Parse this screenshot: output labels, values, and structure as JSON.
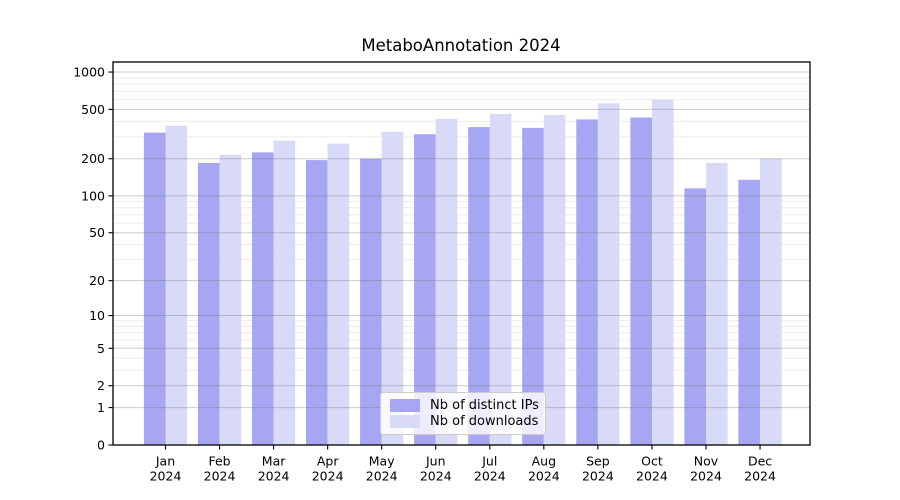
{
  "title": "MetaboAnnotation 2024",
  "chart_data": {
    "type": "bar",
    "title": "MetaboAnnotation 2024",
    "categories": [
      "Jan",
      "Feb",
      "Mar",
      "Apr",
      "May",
      "Jun",
      "Jul",
      "Aug",
      "Sep",
      "Oct",
      "Nov",
      "Dec"
    ],
    "category_year": "2024",
    "y_scale": "log1p",
    "y_ticks": [
      0,
      1,
      2,
      5,
      10,
      20,
      50,
      100,
      200,
      500,
      1000
    ],
    "ylim": [
      0,
      1200
    ],
    "grid": true,
    "legend_position": "lower center",
    "series": [
      {
        "name": "Nb of distinct IPs",
        "color": "#a6a6f2",
        "values": [
          325,
          185,
          225,
          195,
          200,
          315,
          360,
          355,
          415,
          430,
          115,
          135
        ]
      },
      {
        "name": "Nb of downloads",
        "color": "#d9d9f8",
        "values": [
          370,
          215,
          280,
          265,
          330,
          420,
          460,
          450,
          560,
          600,
          185,
          200
        ]
      }
    ]
  },
  "colors": {
    "axis": "#000000",
    "major_grid": "#b8b8b8",
    "minor_grid": "#ececec",
    "background": "#ffffff"
  }
}
